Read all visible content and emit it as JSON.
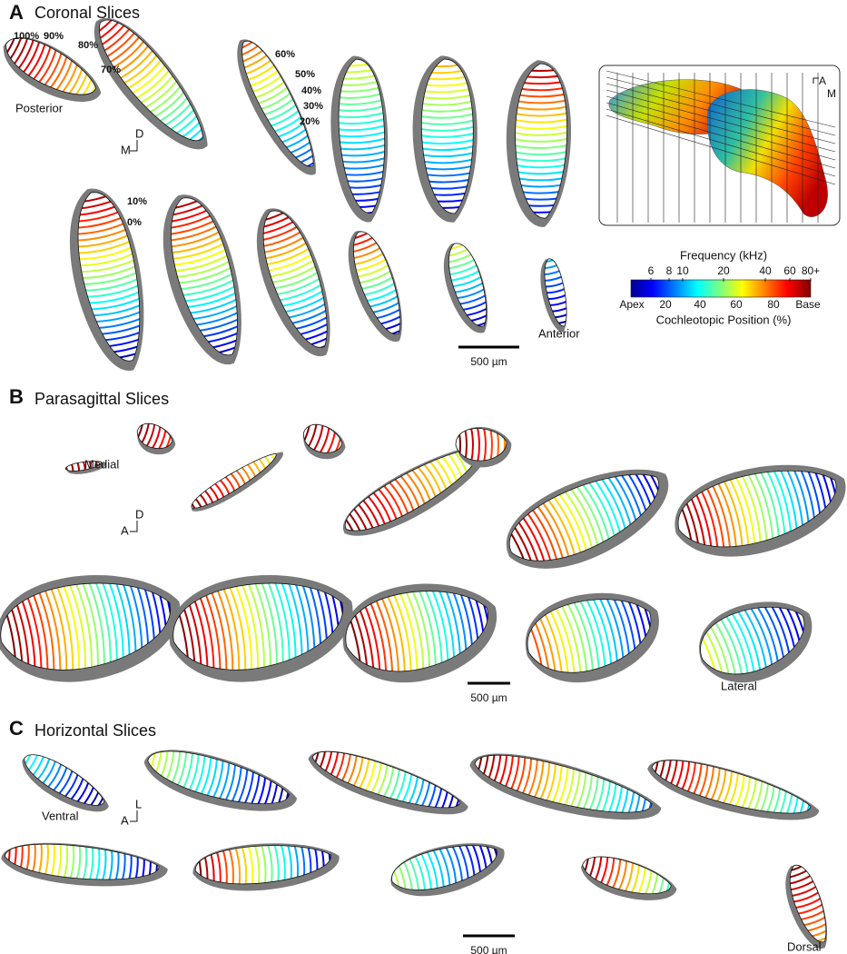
{
  "panels": [
    {
      "label": "A",
      "title": "Coronal Slices",
      "annotations": [
        "100%",
        "90%",
        "80%",
        "70%",
        "Posterior",
        "60%",
        "50%",
        "40%",
        "30%",
        "20%",
        "10%",
        "0%",
        "Anterior"
      ],
      "orientation": [
        "D",
        "M"
      ],
      "scale_bar": "500 µm"
    },
    {
      "label": "B",
      "title": "Parasagittal Slices",
      "annotations": [
        "Medial",
        "Lateral"
      ],
      "orientation": [
        "D",
        "A"
      ],
      "scale_bar": "500 µm"
    },
    {
      "label": "C",
      "title": "Horizontal Slices",
      "annotations": [
        "Ventral",
        "Dorsal"
      ],
      "orientation": [
        "L",
        "A"
      ],
      "scale_bar": "500 µm"
    }
  ],
  "inset": {
    "orientation": [
      "A",
      "M"
    ]
  },
  "colorbar": {
    "title": "Frequency (kHz)",
    "frequency_ticks": [
      "6",
      "8",
      "10",
      "20",
      "40",
      "60",
      "80+"
    ],
    "position_ticks": [
      "Apex",
      "20",
      "40",
      "60",
      "80",
      "Base"
    ],
    "axis_label": "Cochleotopic Position (%)"
  }
}
